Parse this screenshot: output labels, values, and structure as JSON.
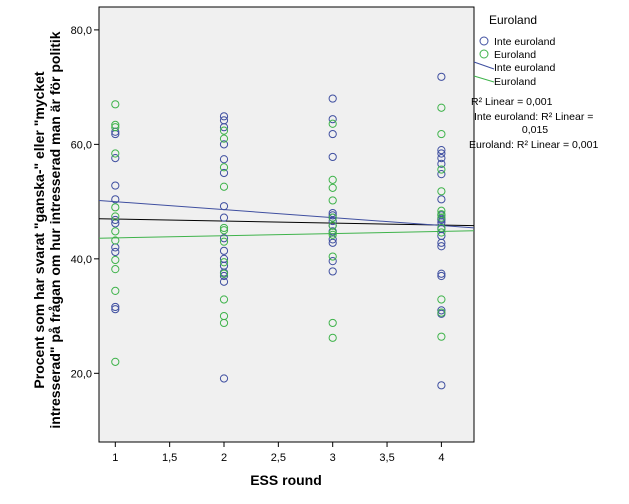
{
  "chart_data": {
    "type": "scatter",
    "xlabel": "ESS round",
    "ylabel_lines": [
      "Procent som har svarat \"ganska-\" eller \"mycket",
      "intresserad\" på frågan om hur intresserad man är för politik"
    ],
    "xlim": [
      0.85,
      4.3
    ],
    "ylim": [
      8,
      84
    ],
    "x_ticks": [
      1,
      1.5,
      2,
      2.5,
      3,
      3.5,
      4
    ],
    "x_tick_labels": [
      "1",
      "1,5",
      "2",
      "2,5",
      "3",
      "3,5",
      "4"
    ],
    "y_ticks": [
      20,
      40,
      60,
      80
    ],
    "y_tick_labels": [
      "20,0",
      "40,0",
      "60,0",
      "80,0"
    ],
    "grid": false,
    "legend": {
      "position": "right",
      "title": "Euroland",
      "entries": [
        {
          "label": "Inte euroland",
          "marker": "circle",
          "series": "inte_euroland"
        },
        {
          "label": "Euroland",
          "marker": "circle",
          "series": "euroland"
        },
        {
          "label": "Inte euroland",
          "marker": "line",
          "series": "inte_euroland"
        },
        {
          "label": "Euroland",
          "marker": "line",
          "series": "euroland"
        }
      ],
      "r2_lines": [
        "R² Linear = 0,001",
        "Inte euroland: R² Linear =",
        "0,015",
        "Euroland: R² Linear = 0,001"
      ]
    },
    "colors": {
      "inte_euroland": "#3f4fa0",
      "euroland": "#3fb34b",
      "total": "#000000",
      "plot_background": "#f0f0f0"
    },
    "series": [
      {
        "key": "inte_euroland",
        "name": "Inte euroland",
        "points": [
          [
            1,
            62.2
          ],
          [
            1,
            61.8
          ],
          [
            1,
            57.6
          ],
          [
            1,
            52.8
          ],
          [
            1,
            50.4
          ],
          [
            1,
            46.8
          ],
          [
            1,
            46.2
          ],
          [
            1,
            42.0
          ],
          [
            1,
            41.2
          ],
          [
            1,
            31.6
          ],
          [
            1,
            31.2
          ],
          [
            2,
            64.9
          ],
          [
            2,
            64.2
          ],
          [
            2,
            63.0
          ],
          [
            2,
            60.0
          ],
          [
            2,
            57.4
          ],
          [
            2,
            55.0
          ],
          [
            2,
            49.2
          ],
          [
            2,
            47.2
          ],
          [
            2,
            43.6
          ],
          [
            2,
            41.4
          ],
          [
            2,
            40.0
          ],
          [
            2,
            38.8
          ],
          [
            2,
            37.6
          ],
          [
            2,
            37.0
          ],
          [
            2,
            36.0
          ],
          [
            2,
            19.1
          ],
          [
            3,
            68.0
          ],
          [
            3,
            64.4
          ],
          [
            3,
            61.8
          ],
          [
            3,
            57.8
          ],
          [
            3,
            48.0
          ],
          [
            3,
            47.6
          ],
          [
            3,
            47.2
          ],
          [
            3,
            46.6
          ],
          [
            3,
            45.8
          ],
          [
            3,
            44.8
          ],
          [
            3,
            43.4
          ],
          [
            3,
            42.8
          ],
          [
            3,
            39.6
          ],
          [
            3,
            37.8
          ],
          [
            4,
            71.8
          ],
          [
            4,
            59.0
          ],
          [
            4,
            58.4
          ],
          [
            4,
            57.6
          ],
          [
            4,
            56.6
          ],
          [
            4,
            54.8
          ],
          [
            4,
            50.4
          ],
          [
            4,
            47.6
          ],
          [
            4,
            47.0
          ],
          [
            4,
            46.8
          ],
          [
            4,
            46.4
          ],
          [
            4,
            45.2
          ],
          [
            4,
            44.0
          ],
          [
            4,
            42.8
          ],
          [
            4,
            42.2
          ],
          [
            4,
            37.4
          ],
          [
            4,
            37.0
          ],
          [
            4,
            31.0
          ],
          [
            4,
            30.4
          ],
          [
            4,
            17.9
          ]
        ]
      },
      {
        "key": "euroland",
        "name": "Euroland",
        "points": [
          [
            1,
            67.0
          ],
          [
            1,
            63.4
          ],
          [
            1,
            63.0
          ],
          [
            1,
            58.4
          ],
          [
            1,
            49.0
          ],
          [
            1,
            47.4
          ],
          [
            1,
            44.8
          ],
          [
            1,
            43.2
          ],
          [
            1,
            39.8
          ],
          [
            1,
            38.2
          ],
          [
            1,
            34.4
          ],
          [
            1,
            22.0
          ],
          [
            2,
            62.4
          ],
          [
            2,
            61.0
          ],
          [
            2,
            56.0
          ],
          [
            2,
            52.6
          ],
          [
            2,
            45.4
          ],
          [
            2,
            45.0
          ],
          [
            2,
            43.0
          ],
          [
            2,
            39.4
          ],
          [
            2,
            37.4
          ],
          [
            2,
            32.9
          ],
          [
            2,
            30.0
          ],
          [
            2,
            28.8
          ],
          [
            3,
            63.6
          ],
          [
            3,
            53.8
          ],
          [
            3,
            52.4
          ],
          [
            3,
            50.2
          ],
          [
            3,
            47.2
          ],
          [
            3,
            45.8
          ],
          [
            3,
            44.6
          ],
          [
            3,
            44.2
          ],
          [
            3,
            40.4
          ],
          [
            3,
            28.8
          ],
          [
            3,
            26.2
          ],
          [
            4,
            66.4
          ],
          [
            4,
            61.8
          ],
          [
            4,
            55.6
          ],
          [
            4,
            51.8
          ],
          [
            4,
            48.4
          ],
          [
            4,
            47.8
          ],
          [
            4,
            47.2
          ],
          [
            4,
            45.4
          ],
          [
            4,
            44.6
          ],
          [
            4,
            32.9
          ],
          [
            4,
            30.6
          ],
          [
            4,
            26.4
          ]
        ]
      }
    ],
    "fit_lines": [
      {
        "key": "total",
        "name": "Total",
        "x": [
          0.85,
          4.3
        ],
        "y": [
          47.0,
          45.8
        ]
      },
      {
        "key": "inte_euroland",
        "name": "Inte euroland",
        "x": [
          0.85,
          4.3
        ],
        "y": [
          50.2,
          45.4
        ]
      },
      {
        "key": "euroland",
        "name": "Euroland",
        "x": [
          0.85,
          4.3
        ],
        "y": [
          43.6,
          44.9
        ]
      }
    ]
  }
}
